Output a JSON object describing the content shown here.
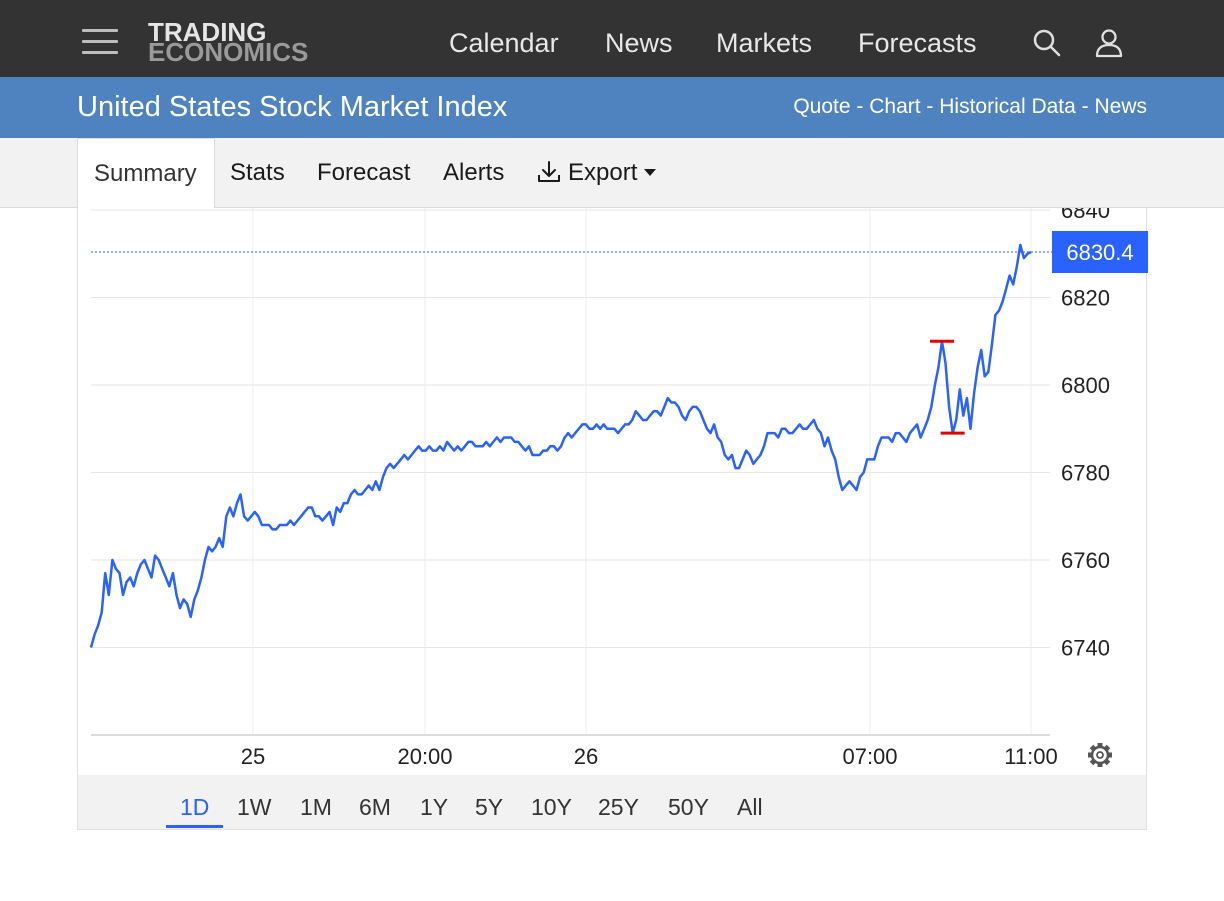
{
  "header": {
    "logo_line1": "TRADING",
    "logo_line2": "ECONOMICS",
    "nav": [
      "Calendar",
      "News",
      "Markets",
      "Forecasts"
    ],
    "icons": [
      "menu-icon",
      "search-icon",
      "user-icon"
    ]
  },
  "titlebar": {
    "title": "United States Stock Market Index",
    "links": [
      "Quote",
      "Chart",
      "Historical Data",
      "News"
    ],
    "separator": " - "
  },
  "tabs": {
    "summary": "Summary",
    "stats": "Stats",
    "forecast": "Forecast",
    "alerts": "Alerts",
    "export": "Export",
    "active": "Summary"
  },
  "chart_data": {
    "type": "line",
    "y_ticks": [
      "6840",
      "6820",
      "6800",
      "6780",
      "6760",
      "6740"
    ],
    "x_ticks": [
      "25",
      "20:00",
      "26",
      "07:00",
      "11:00"
    ],
    "last_value_label": "6830.4",
    "last_value": 6830.4,
    "ylim": [
      6720,
      6840
    ],
    "grid": true,
    "series_color": "#2962ff",
    "marker_color": "#e00000",
    "high_marker": 6810,
    "low_marker": 6789,
    "values": [
      6740,
      6743,
      6745,
      6748,
      6757,
      6752,
      6760,
      6758,
      6757,
      6752,
      6755,
      6756,
      6754,
      6757,
      6759,
      6760,
      6758,
      6756,
      6761,
      6760,
      6758,
      6756,
      6754,
      6757,
      6752,
      6749,
      6751,
      6750,
      6747,
      6751,
      6753,
      6756,
      6760,
      6763,
      6762,
      6763,
      6765,
      6763,
      6770,
      6772,
      6770,
      6773,
      6775,
      6770,
      6769,
      6770,
      6771,
      6770,
      6768,
      6768,
      6768,
      6767,
      6767,
      6768,
      6768,
      6768,
      6769,
      6768,
      6769,
      6770,
      6771,
      6772,
      6772,
      6770,
      6770,
      6769,
      6770,
      6771,
      6768,
      6772,
      6771,
      6773,
      6773,
      6775,
      6776,
      6775,
      6775,
      6776,
      6777,
      6776,
      6778,
      6776,
      6779,
      6781,
      6782,
      6781,
      6782,
      6783,
      6784,
      6783,
      6784,
      6785,
      6786,
      6785,
      6785,
      6786,
      6785,
      6785,
      6786,
      6785,
      6787,
      6786,
      6785,
      6786,
      6785,
      6786,
      6787,
      6787,
      6786,
      6786,
      6786,
      6787,
      6786,
      6787,
      6788,
      6787,
      6788,
      6788,
      6788,
      6787,
      6787,
      6786,
      6785,
      6786,
      6784,
      6784,
      6784,
      6785,
      6785,
      6786,
      6786,
      6785,
      6786,
      6788,
      6789,
      6788,
      6789,
      6790,
      6791,
      6791,
      6790,
      6790,
      6791,
      6790,
      6791,
      6790,
      6790,
      6790,
      6789,
      6790,
      6791,
      6791,
      6792,
      6794,
      6793,
      6792,
      6792,
      6793,
      6794,
      6794,
      6793,
      6795,
      6797,
      6796,
      6796,
      6795,
      6793,
      6792,
      6794,
      6795,
      6795,
      6794,
      6792,
      6790,
      6789,
      6791,
      6788,
      6787,
      6784,
      6783,
      6784,
      6781,
      6781,
      6783,
      6785,
      6784,
      6782,
      6783,
      6784,
      6786,
      6789,
      6789,
      6789,
      6788,
      6790,
      6790,
      6789,
      6789,
      6790,
      6791,
      6790,
      6790,
      6791,
      6792,
      6790,
      6789,
      6786,
      6788,
      6785,
      6783,
      6779,
      6776,
      6777,
      6778,
      6777,
      6776,
      6779,
      6780,
      6783,
      6783,
      6783,
      6786,
      6788,
      6788,
      6788,
      6787,
      6789,
      6789,
      6788,
      6787,
      6789,
      6790,
      6791,
      6788,
      6790,
      6792,
      6795,
      6800,
      6804,
      6810,
      6805,
      6795,
      6789,
      6792,
      6799,
      6793,
      6797,
      6790,
      6798,
      6804,
      6808,
      6802,
      6803,
      6809,
      6816,
      6817,
      6819,
      6822,
      6825,
      6823,
      6827,
      6832,
      6829,
      6830,
      6830.4
    ]
  },
  "ranges": {
    "items": [
      "1D",
      "1W",
      "1M",
      "6M",
      "1Y",
      "5Y",
      "10Y",
      "25Y",
      "50Y",
      "All"
    ],
    "active": "1D"
  }
}
